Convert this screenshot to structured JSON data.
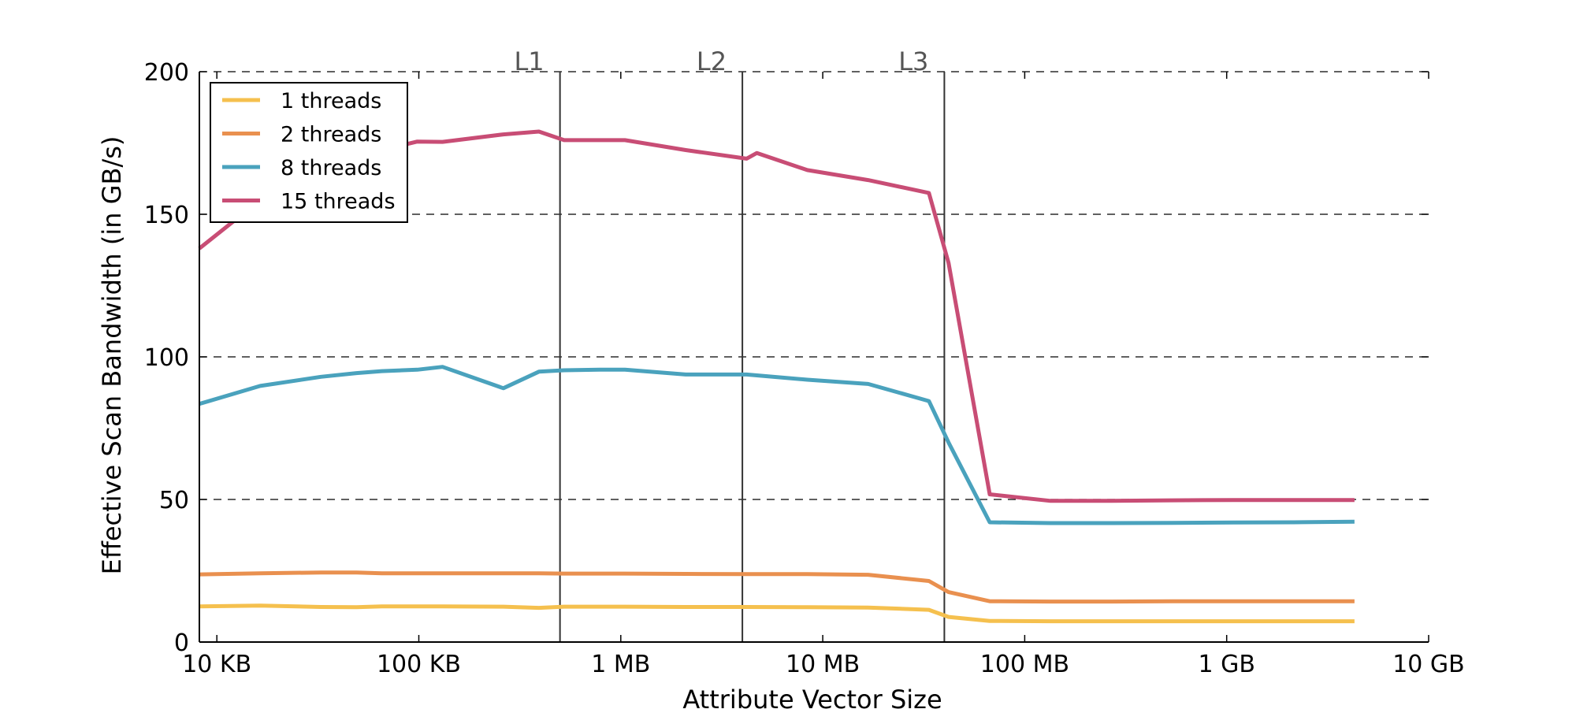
{
  "chart_data": {
    "type": "line",
    "title": "",
    "xlabel": "Attribute Vector Size",
    "ylabel": "Effective Scan Bandwidth (in GB/s)",
    "x_scale": "log",
    "x_unit": "bytes",
    "xlim": [
      8192,
      10000000000
    ],
    "ylim": [
      0,
      200
    ],
    "x_ticks": [
      {
        "value": 10000,
        "label": "10 KB"
      },
      {
        "value": 100000,
        "label": "100 KB"
      },
      {
        "value": 1000000,
        "label": "1 MB"
      },
      {
        "value": 10000000,
        "label": "10 MB"
      },
      {
        "value": 100000000,
        "label": "100 MB"
      },
      {
        "value": 1000000000,
        "label": "1 GB"
      },
      {
        "value": 10000000000,
        "label": "10 GB"
      }
    ],
    "y_ticks": [
      {
        "value": 0,
        "label": "0"
      },
      {
        "value": 50,
        "label": "50"
      },
      {
        "value": 100,
        "label": "100"
      },
      {
        "value": 150,
        "label": "150"
      },
      {
        "value": 200,
        "label": "200"
      }
    ],
    "grid": "horizontal-dashed",
    "legend_position": "top-left",
    "cache_lines": [
      {
        "label": "L1",
        "value": 500000
      },
      {
        "label": "L2",
        "value": 4000000
      },
      {
        "label": "L3",
        "value": 40000000
      }
    ],
    "series": [
      {
        "name": "1 threads",
        "color": "#f5c04e",
        "x": [
          8192,
          16384,
          32768,
          49152,
          65536,
          98304,
          131072,
          262144,
          393216,
          524288,
          786432,
          1048576,
          2097152,
          4194304,
          8388608,
          16777216,
          33554432,
          41943040,
          67108864,
          134217728,
          268435456,
          536870912,
          1073741824,
          2147483648,
          4294967296
        ],
        "values": [
          12.5,
          12.8,
          12.3,
          12.2,
          12.5,
          12.5,
          12.5,
          12.4,
          12.0,
          12.4,
          12.4,
          12.4,
          12.3,
          12.3,
          12.2,
          12.1,
          11.3,
          8.8,
          7.4,
          7.3,
          7.3,
          7.3,
          7.3,
          7.3,
          7.3
        ]
      },
      {
        "name": "2 threads",
        "color": "#e9904f",
        "x": [
          8192,
          16384,
          32768,
          49152,
          65536,
          98304,
          131072,
          262144,
          393216,
          524288,
          786432,
          1048576,
          2097152,
          4194304,
          8388608,
          16777216,
          33554432,
          41943040,
          67108864,
          134217728,
          268435456,
          536870912,
          1073741824,
          2147483648,
          4294967296
        ],
        "values": [
          23.7,
          24.1,
          24.4,
          24.4,
          24.1,
          24.1,
          24.1,
          24.1,
          24.1,
          24.0,
          24.0,
          24.0,
          23.9,
          23.8,
          23.8,
          23.6,
          21.4,
          17.5,
          14.3,
          14.2,
          14.2,
          14.3,
          14.3,
          14.3,
          14.3
        ]
      },
      {
        "name": "8 threads",
        "color": "#4aa2bd",
        "x": [
          8192,
          16384,
          32768,
          49152,
          65536,
          98304,
          131072,
          262144,
          393216,
          524288,
          786432,
          1048576,
          2097152,
          4194304,
          8388608,
          16777216,
          33554432,
          41943040,
          67108864,
          134217728,
          268435456,
          536870912,
          1073741824,
          2147483648,
          4294967296
        ],
        "values": [
          83.5,
          89.8,
          93.0,
          94.3,
          95.0,
          95.5,
          96.5,
          89.0,
          94.8,
          95.3,
          95.5,
          95.5,
          93.8,
          93.8,
          92.0,
          90.5,
          84.5,
          70.0,
          42.0,
          41.7,
          41.7,
          41.8,
          41.9,
          42.0,
          42.2
        ]
      },
      {
        "name": "15 threads",
        "color": "#c84d75",
        "x": [
          8192,
          16384,
          32768,
          49152,
          65536,
          98304,
          131072,
          262144,
          393216,
          524288,
          786432,
          1048576,
          2097152,
          4194304,
          4718592,
          8388608,
          16777216,
          33554432,
          41943040,
          67108864,
          134217728,
          268435456,
          536870912,
          1073741824,
          2147483648,
          4294967296
        ],
        "values": [
          138.0,
          155.0,
          166.0,
          170.0,
          172.5,
          175.5,
          175.4,
          178.0,
          179.0,
          176.0,
          176.0,
          176.0,
          172.5,
          169.5,
          171.5,
          165.5,
          162.0,
          157.5,
          133.0,
          51.8,
          49.5,
          49.5,
          49.7,
          49.8,
          49.8,
          49.8
        ]
      }
    ]
  }
}
